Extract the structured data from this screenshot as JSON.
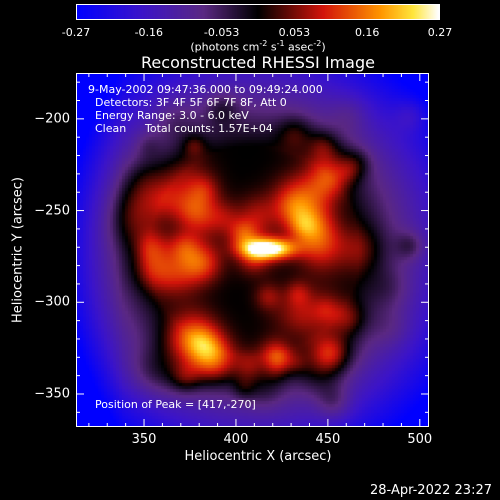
{
  "colorbar": {
    "ticks": [
      "-0.27",
      "-0.16",
      "-0.053",
      "0.053",
      "0.16",
      "0.27"
    ],
    "units_prefix": "(photons cm",
    "units_exp1": "-2",
    "units_mid": " s",
    "units_exp2": "-1",
    "units_mid2": " asec",
    "units_exp3": "-2",
    "units_suffix": ")"
  },
  "title": "Reconstructed RHESSI Image",
  "info": {
    "line1": "9-May-2002 09:47:36.000 to 09:49:24.000",
    "line2": "Detectors: 3F 4F 5F 6F 7F 8F, Att 0",
    "line3": "Energy Range: 3.0 - 6.0 keV",
    "line4_a": "Clean",
    "line4_b": "Total counts: 1.57E+04",
    "peak": "Position of Peak = [417,-270]"
  },
  "chart_data": {
    "type": "heatmap",
    "title": "Reconstructed RHESSI Image",
    "xlabel": "Heliocentric X (arcsec)",
    "ylabel": "Heliocentric Y (arcsec)",
    "xlim": [
      313,
      505
    ],
    "ylim": [
      -368,
      -175
    ],
    "xticks": [
      350,
      400,
      450,
      500
    ],
    "yticks": [
      -200,
      -250,
      -300,
      -350
    ],
    "color_range": [
      -0.27,
      0.27
    ],
    "colormap": "blue-purple-black-red-yellow-white",
    "peak_position": [
      417,
      -270
    ],
    "peak_value": 0.27
  },
  "timestamp": "28-Apr-2022 23:27"
}
